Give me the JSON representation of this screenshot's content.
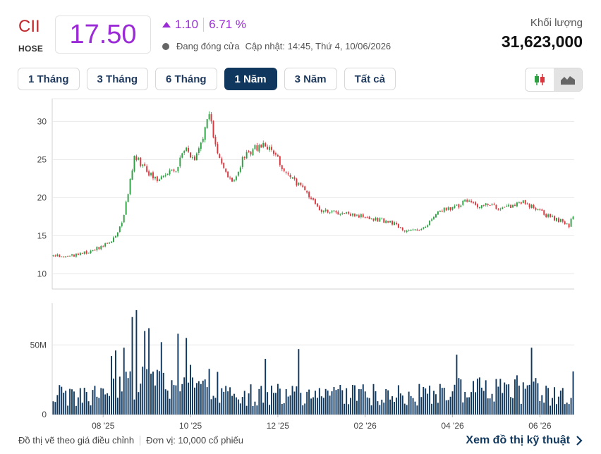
{
  "header": {
    "ticker": "CII",
    "exchange": "HOSE",
    "price": "17.50",
    "change": "1.10",
    "change_pct": "6.71 %",
    "status": "Đang đóng cửa",
    "updated": "Cập nhật: 14:45, Thứ 4, 10/06/2026",
    "volume_label": "Khối lượng",
    "volume_value": "31,623,000",
    "accent_color": "#9b2bd6",
    "ticker_color": "#c0282d"
  },
  "range_tabs": [
    {
      "label": "1 Tháng",
      "active": false
    },
    {
      "label": "3 Tháng",
      "active": false
    },
    {
      "label": "6 Tháng",
      "active": false
    },
    {
      "label": "1 Năm",
      "active": true
    },
    {
      "label": "3 Năm",
      "active": false
    },
    {
      "label": "Tất cả",
      "active": false
    }
  ],
  "chart_type_buttons": [
    {
      "icon": "candlestick-icon",
      "active": false
    },
    {
      "icon": "mountain-chart-icon",
      "active": true
    }
  ],
  "footer": {
    "note": "Đồ thị vẽ theo giá điều chỉnh",
    "unit": "Đơn vị: 10,000 cổ phiếu",
    "link": "Xem đồ thị kỹ thuật"
  },
  "chart_data": {
    "type": "candlestick",
    "up_color": "#2ea043",
    "down_color": "#d9363e",
    "volume_color": "#10385f",
    "price_ticks": [
      10,
      15,
      20,
      25,
      30
    ],
    "price_tick_labels": [
      "10",
      "15",
      "20",
      "25",
      "30"
    ],
    "price_range": [
      8,
      33
    ],
    "volume_ticks": [
      "0",
      "50M"
    ],
    "volume_range": [
      0,
      80
    ],
    "x_labels": [
      "08 '25",
      "10 '25",
      "12 '25",
      "02 '26",
      "04 '26",
      "06 '26"
    ],
    "x_label_index": [
      24,
      66,
      108,
      150,
      192,
      234
    ],
    "anchors": [
      [
        0,
        12.3
      ],
      [
        12,
        12.5
      ],
      [
        20,
        13.2
      ],
      [
        28,
        14.2
      ],
      [
        33,
        16.5
      ],
      [
        36,
        20.5
      ],
      [
        39,
        25.5
      ],
      [
        45,
        23.5
      ],
      [
        50,
        22.5
      ],
      [
        55,
        23.5
      ],
      [
        60,
        24.0
      ],
      [
        63,
        26.5
      ],
      [
        68,
        25.0
      ],
      [
        72,
        28.0
      ],
      [
        75,
        31.0
      ],
      [
        78,
        27.0
      ],
      [
        82,
        24.0
      ],
      [
        86,
        22.0
      ],
      [
        92,
        25.5
      ],
      [
        97,
        26.5
      ],
      [
        102,
        27.0
      ],
      [
        106,
        26.0
      ],
      [
        110,
        24.0
      ],
      [
        115,
        22.5
      ],
      [
        122,
        20.5
      ],
      [
        128,
        18.5
      ],
      [
        134,
        18.0
      ],
      [
        142,
        18.0
      ],
      [
        150,
        17.5
      ],
      [
        158,
        17.0
      ],
      [
        165,
        16.5
      ],
      [
        170,
        15.5
      ],
      [
        176,
        15.8
      ],
      [
        182,
        17.0
      ],
      [
        186,
        18.5
      ],
      [
        192,
        18.5
      ],
      [
        198,
        19.5
      ],
      [
        204,
        19.0
      ],
      [
        210,
        19.0
      ],
      [
        216,
        18.5
      ],
      [
        222,
        19.0
      ],
      [
        226,
        19.5
      ],
      [
        232,
        18.5
      ],
      [
        238,
        17.5
      ],
      [
        244,
        17.0
      ],
      [
        248,
        16.4
      ],
      [
        250,
        17.5
      ]
    ],
    "volume_spikes": [
      [
        38,
        70
      ],
      [
        40,
        75
      ],
      [
        44,
        60
      ],
      [
        46,
        62
      ],
      [
        60,
        58
      ],
      [
        64,
        55
      ],
      [
        52,
        52
      ],
      [
        30,
        46
      ],
      [
        34,
        48
      ],
      [
        28,
        42
      ],
      [
        118,
        47
      ],
      [
        102,
        40
      ],
      [
        194,
        43
      ],
      [
        230,
        48
      ],
      [
        250,
        31
      ]
    ]
  }
}
